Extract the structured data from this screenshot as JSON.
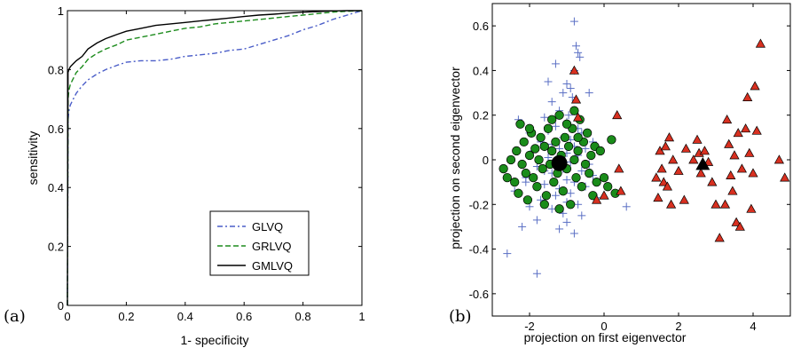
{
  "chart_data": [
    {
      "type": "line",
      "panel_label": "(a)",
      "xlabel": "1- specificity",
      "ylabel": "sensitivity",
      "xlim": [
        0,
        1
      ],
      "ylim": [
        0,
        1
      ],
      "xticks": [
        "0",
        "0.2",
        "0.4",
        "0.6",
        "0.8",
        "1"
      ],
      "yticks": [
        "0",
        "0.2",
        "0.4",
        "0.6",
        "0.8",
        "1"
      ],
      "legend_position": "bottom-right",
      "series": [
        {
          "name": "GLVQ",
          "color": "#4a5dc8",
          "dash": "dash-dot",
          "x": [
            0,
            0.002,
            0.005,
            0.01,
            0.02,
            0.03,
            0.05,
            0.07,
            0.1,
            0.13,
            0.17,
            0.2,
            0.25,
            0.3,
            0.35,
            0.4,
            0.45,
            0.5,
            0.55,
            0.6,
            0.65,
            0.7,
            0.75,
            0.8,
            0.85,
            0.9,
            0.95,
            1
          ],
          "y": [
            0,
            0.63,
            0.66,
            0.68,
            0.7,
            0.72,
            0.745,
            0.765,
            0.785,
            0.8,
            0.815,
            0.825,
            0.83,
            0.83,
            0.835,
            0.845,
            0.85,
            0.855,
            0.865,
            0.87,
            0.885,
            0.9,
            0.915,
            0.935,
            0.95,
            0.97,
            0.985,
            1
          ]
        },
        {
          "name": "GRLVQ",
          "color": "#1e8c1e",
          "dash": "dashed",
          "x": [
            0,
            0.002,
            0.005,
            0.01,
            0.02,
            0.03,
            0.05,
            0.07,
            0.1,
            0.13,
            0.17,
            0.2,
            0.25,
            0.3,
            0.35,
            0.4,
            0.45,
            0.5,
            0.55,
            0.6,
            0.65,
            0.7,
            0.75,
            0.8,
            0.85,
            0.9,
            0.95,
            1
          ],
          "y": [
            0,
            0.7,
            0.73,
            0.75,
            0.77,
            0.79,
            0.81,
            0.835,
            0.855,
            0.87,
            0.885,
            0.9,
            0.91,
            0.92,
            0.93,
            0.94,
            0.945,
            0.955,
            0.96,
            0.965,
            0.97,
            0.975,
            0.98,
            0.985,
            0.99,
            0.995,
            0.998,
            1
          ]
        },
        {
          "name": "GMLVQ",
          "color": "#000000",
          "dash": "solid",
          "x": [
            0,
            0.002,
            0.005,
            0.01,
            0.02,
            0.03,
            0.05,
            0.07,
            0.1,
            0.13,
            0.17,
            0.2,
            0.25,
            0.3,
            0.35,
            0.4,
            0.45,
            0.5,
            0.55,
            0.6,
            0.65,
            0.7,
            0.75,
            0.8,
            0.85,
            0.9,
            0.95,
            1
          ],
          "y": [
            0,
            0.79,
            0.8,
            0.81,
            0.82,
            0.83,
            0.845,
            0.87,
            0.89,
            0.905,
            0.92,
            0.93,
            0.94,
            0.95,
            0.955,
            0.96,
            0.965,
            0.97,
            0.975,
            0.98,
            0.985,
            0.988,
            0.992,
            0.995,
            0.997,
            0.999,
            1,
            1
          ]
        }
      ]
    },
    {
      "type": "scatter",
      "panel_label": "(b)",
      "xlabel": "projection on first eigenvector",
      "ylabel": "projection on second eigenvector",
      "xlim": [
        -3,
        5
      ],
      "ylim": [
        -0.7,
        0.7
      ],
      "xticks": [
        -2,
        0,
        2,
        4
      ],
      "yticks": [
        -0.6,
        -0.4,
        -0.2,
        0,
        0.2,
        0.4,
        0.6
      ],
      "xtick_labels": [
        "-2",
        "0",
        "2",
        "4"
      ],
      "ytick_labels": [
        "-0.6",
        "-0.4",
        "-0.2",
        "0",
        "0.2",
        "0.4",
        "0.6"
      ],
      "series": [
        {
          "marker": "plus",
          "color": "#5a6fc4",
          "points": [
            [
              -0.8,
              0.62
            ],
            [
              -0.75,
              0.51
            ],
            [
              -0.7,
              0.48
            ],
            [
              -0.65,
              0.46
            ],
            [
              -1.3,
              0.43
            ],
            [
              -0.8,
              0.4
            ],
            [
              -1.0,
              0.34
            ],
            [
              -0.9,
              0.32
            ],
            [
              -1.1,
              0.3
            ],
            [
              -0.85,
              0.28
            ],
            [
              -1.4,
              0.26
            ],
            [
              -1.2,
              0.22
            ],
            [
              -0.95,
              0.2
            ],
            [
              -1.6,
              0.19
            ],
            [
              -2.3,
              0.18
            ],
            [
              -1.0,
              0.17
            ],
            [
              -1.3,
              0.15
            ],
            [
              -0.7,
              0.14
            ],
            [
              -1.5,
              0.13
            ],
            [
              -2.0,
              0.12
            ],
            [
              -0.6,
              0.12
            ],
            [
              -1.1,
              0.1
            ],
            [
              -0.9,
              0.09
            ],
            [
              -1.7,
              0.08
            ],
            [
              -1.4,
              0.07
            ],
            [
              -0.8,
              0.06
            ],
            [
              -1.2,
              0.05
            ],
            [
              -0.5,
              0.05
            ],
            [
              -1.9,
              0.04
            ],
            [
              -1.0,
              0.03
            ],
            [
              -0.7,
              0.02
            ],
            [
              -1.5,
              0.01
            ],
            [
              -1.3,
              0.0
            ],
            [
              -0.9,
              -0.01
            ],
            [
              -0.4,
              -0.02
            ],
            [
              -1.8,
              -0.03
            ],
            [
              -1.1,
              -0.04
            ],
            [
              -0.6,
              -0.05
            ],
            [
              -1.4,
              -0.06
            ],
            [
              -0.3,
              -0.07
            ],
            [
              -2.1,
              -0.08
            ],
            [
              -1.0,
              -0.09
            ],
            [
              -0.8,
              -0.1
            ],
            [
              -1.6,
              -0.11
            ],
            [
              -0.5,
              -0.12
            ],
            [
              -1.2,
              -0.13
            ],
            [
              -2.4,
              -0.14
            ],
            [
              -0.9,
              -0.15
            ],
            [
              -1.3,
              -0.16
            ],
            [
              -0.2,
              -0.17
            ],
            [
              -1.7,
              -0.18
            ],
            [
              -1.0,
              -0.19
            ],
            [
              -0.7,
              -0.2
            ],
            [
              -2.0,
              -0.21
            ],
            [
              -1.4,
              -0.22
            ],
            [
              0.6,
              -0.21
            ],
            [
              -1.1,
              -0.24
            ],
            [
              -0.6,
              -0.25
            ],
            [
              -1.8,
              -0.27
            ],
            [
              -1.0,
              -0.28
            ],
            [
              -2.2,
              -0.3
            ],
            [
              -1.2,
              -0.31
            ],
            [
              -0.8,
              -0.33
            ],
            [
              -2.6,
              -0.42
            ],
            [
              -1.8,
              -0.51
            ],
            [
              -1.5,
              0.35
            ],
            [
              -0.4,
              0.3
            ],
            [
              -2.1,
              -0.1
            ],
            [
              -0.3,
              0.08
            ],
            [
              -1.6,
              -0.05
            ]
          ]
        },
        {
          "marker": "circle",
          "color": "#1a8c1a",
          "points": [
            [
              -2.7,
              -0.04
            ],
            [
              -2.6,
              -0.08
            ],
            [
              -2.5,
              0.0
            ],
            [
              -2.4,
              -0.1
            ],
            [
              -2.35,
              0.04
            ],
            [
              -2.3,
              -0.15
            ],
            [
              -2.25,
              0.16
            ],
            [
              -2.2,
              -0.02
            ],
            [
              -2.15,
              0.08
            ],
            [
              -2.1,
              -0.06
            ],
            [
              -2.05,
              -0.18
            ],
            [
              -2.0,
              0.02
            ],
            [
              -1.95,
              0.12
            ],
            [
              -1.9,
              -0.08
            ],
            [
              -1.85,
              0.05
            ],
            [
              -1.8,
              -0.12
            ],
            [
              -1.75,
              0.0
            ],
            [
              -1.7,
              0.1
            ],
            [
              -1.65,
              -0.04
            ],
            [
              -1.6,
              0.06
            ],
            [
              -1.55,
              -0.16
            ],
            [
              -1.5,
              0.14
            ],
            [
              -1.45,
              -0.02
            ],
            [
              -1.4,
              0.04
            ],
            [
              -1.35,
              -0.1
            ],
            [
              -1.3,
              0.08
            ],
            [
              -1.25,
              -0.06
            ],
            [
              -1.2,
              0.2
            ],
            [
              -1.15,
              0.02
            ],
            [
              -1.1,
              -0.14
            ],
            [
              -1.05,
              0.1
            ],
            [
              -1.0,
              -0.04
            ],
            [
              -0.95,
              0.06
            ],
            [
              -0.9,
              -0.2
            ],
            [
              -0.85,
              0.14
            ],
            [
              -0.8,
              0.0
            ],
            [
              -0.75,
              -0.08
            ],
            [
              -0.7,
              0.04
            ],
            [
              -0.65,
              0.18
            ],
            [
              -0.6,
              -0.12
            ],
            [
              -0.55,
              0.08
            ],
            [
              -0.5,
              -0.02
            ],
            [
              -0.45,
              0.12
            ],
            [
              -0.4,
              -0.06
            ],
            [
              -0.35,
              0.02
            ],
            [
              -0.3,
              -0.16
            ],
            [
              -0.25,
              0.06
            ],
            [
              -0.2,
              -0.1
            ],
            [
              -0.1,
              0.04
            ],
            [
              0.0,
              -0.08
            ],
            [
              0.1,
              -0.12
            ],
            [
              0.2,
              0.09
            ],
            [
              0.3,
              -0.15
            ],
            [
              -0.8,
              0.22
            ],
            [
              -1.4,
              0.18
            ],
            [
              -2.0,
              0.14
            ],
            [
              -1.6,
              -0.2
            ],
            [
              -1.2,
              -0.22
            ],
            [
              -0.7,
              0.1
            ],
            [
              -1.0,
              0.16
            ]
          ]
        },
        {
          "marker": "triangle",
          "color": "#d83020",
          "points": [
            [
              -0.8,
              0.4
            ],
            [
              -0.75,
              0.27
            ],
            [
              -0.7,
              0.19
            ],
            [
              0.35,
              0.2
            ],
            [
              0.4,
              -0.04
            ],
            [
              0.45,
              -0.14
            ],
            [
              0.0,
              -0.16
            ],
            [
              -0.2,
              -0.18
            ],
            [
              1.4,
              -0.08
            ],
            [
              1.45,
              -0.17
            ],
            [
              1.5,
              0.04
            ],
            [
              1.55,
              -0.04
            ],
            [
              1.6,
              -0.1
            ],
            [
              1.65,
              0.06
            ],
            [
              1.7,
              -0.12
            ],
            [
              1.75,
              0.1
            ],
            [
              1.8,
              -0.2
            ],
            [
              1.85,
              0.0
            ],
            [
              2.0,
              -0.05
            ],
            [
              2.15,
              -0.18
            ],
            [
              2.2,
              0.05
            ],
            [
              2.5,
              0.09
            ],
            [
              2.55,
              0.03
            ],
            [
              2.6,
              -0.06
            ],
            [
              2.7,
              0.04
            ],
            [
              2.8,
              -0.01
            ],
            [
              2.9,
              -0.1
            ],
            [
              3.0,
              -0.2
            ],
            [
              3.1,
              -0.35
            ],
            [
              3.3,
              0.18
            ],
            [
              3.35,
              0.07
            ],
            [
              3.4,
              -0.07
            ],
            [
              3.45,
              -0.14
            ],
            [
              3.5,
              0.02
            ],
            [
              3.55,
              -0.28
            ],
            [
              3.6,
              0.12
            ],
            [
              3.65,
              -0.3
            ],
            [
              3.7,
              -0.04
            ],
            [
              3.8,
              0.14
            ],
            [
              3.85,
              0.28
            ],
            [
              3.9,
              0.03
            ],
            [
              4.0,
              -0.06
            ],
            [
              4.05,
              0.33
            ],
            [
              4.1,
              0.13
            ],
            [
              4.2,
              0.52
            ],
            [
              4.7,
              0.0
            ],
            [
              4.85,
              -0.08
            ],
            [
              3.25,
              -0.2
            ],
            [
              3.95,
              -0.22
            ],
            [
              2.4,
              0.0
            ]
          ]
        },
        {
          "marker": "big-circle",
          "color": "#000000",
          "points": [
            [
              -1.2,
              -0.015
            ]
          ]
        },
        {
          "marker": "big-triangle",
          "color": "#000000",
          "points": [
            [
              2.65,
              -0.02
            ]
          ]
        }
      ]
    }
  ]
}
